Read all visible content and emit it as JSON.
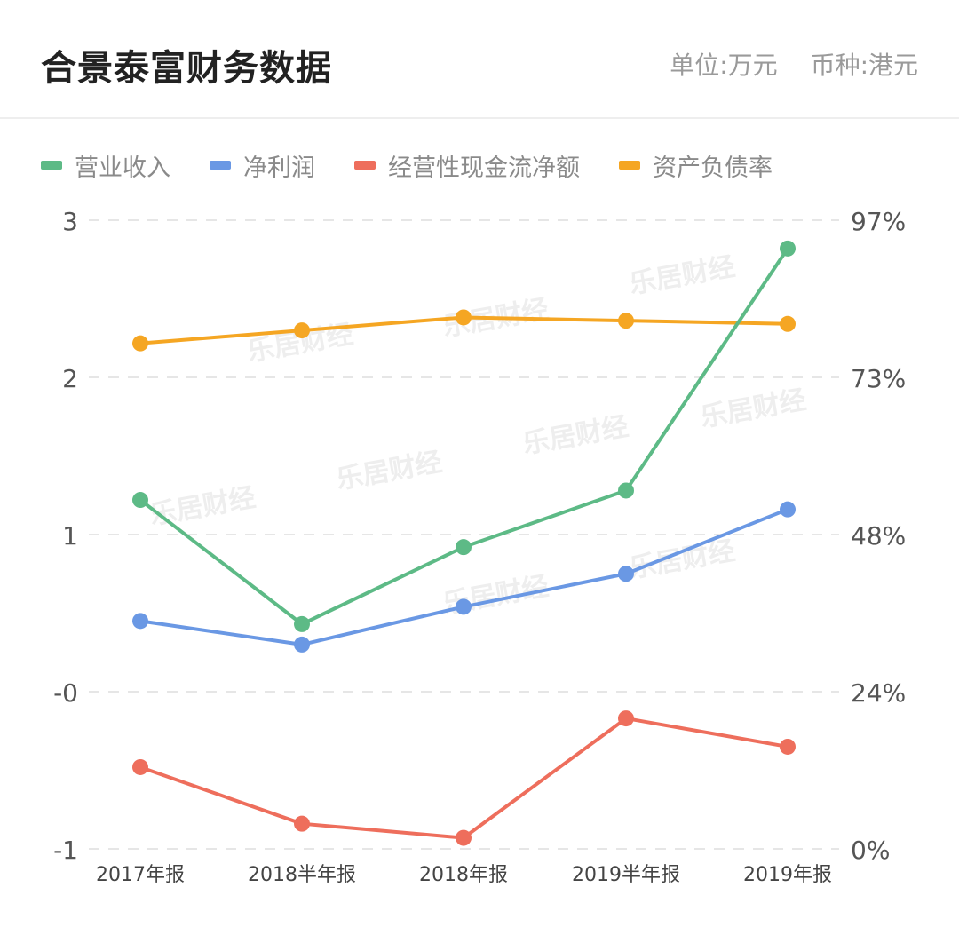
{
  "header": {
    "title": "合景泰富财务数据",
    "unit": "单位:万元",
    "currency": "币种:港元"
  },
  "chart_data": {
    "type": "line",
    "categories": [
      "2017年报",
      "2018半年报",
      "2018年报",
      "2019半年报",
      "2019年报"
    ],
    "y_left": {
      "ticks": [
        "3",
        "2",
        "1",
        "-0",
        "-1"
      ],
      "ylim": [
        -1,
        3
      ]
    },
    "y_right": {
      "ticks": [
        "97%",
        "73%",
        "48%",
        "24%",
        "0%"
      ],
      "ylim": [
        0,
        97
      ]
    },
    "grid": true,
    "legend_position": "top-left",
    "series": [
      {
        "name": "营业收入",
        "color": "#5dba86",
        "axis": "left",
        "values": [
          1.22,
          0.43,
          0.92,
          1.28,
          2.82
        ]
      },
      {
        "name": "净利润",
        "color": "#6a98e4",
        "axis": "left",
        "values": [
          0.45,
          0.3,
          0.54,
          0.75,
          1.16
        ]
      },
      {
        "name": "经营性现金流净额",
        "color": "#ee6e5c",
        "axis": "left",
        "values": [
          -0.48,
          -0.84,
          -0.93,
          -0.17,
          -0.35
        ]
      },
      {
        "name": "资产负债率",
        "color": "#f5a623",
        "axis": "right",
        "values": [
          78,
          80,
          82,
          81.5,
          81
        ]
      }
    ]
  },
  "watermark": "乐居财经"
}
